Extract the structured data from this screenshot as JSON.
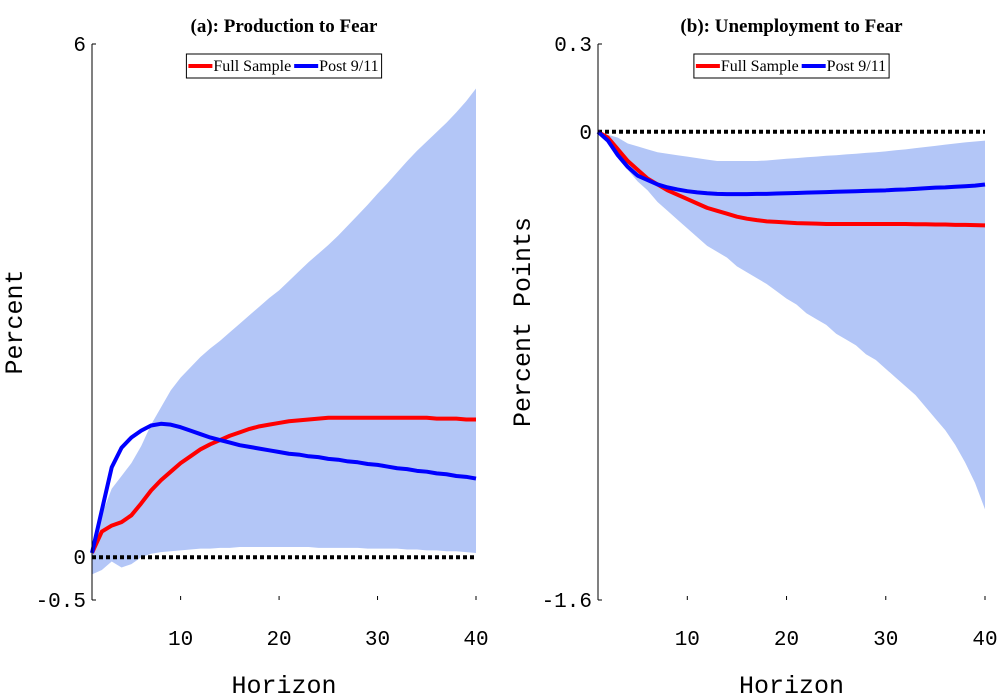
{
  "chart_data": [
    {
      "type": "line",
      "title": "(a): Production to Fear",
      "xlabel": "Horizon",
      "ylabel": "Percent",
      "x": [
        1,
        2,
        3,
        4,
        5,
        6,
        7,
        8,
        9,
        10,
        11,
        12,
        13,
        14,
        15,
        16,
        17,
        18,
        19,
        20,
        21,
        22,
        23,
        24,
        25,
        26,
        27,
        28,
        29,
        30,
        31,
        32,
        33,
        34,
        35,
        36,
        37,
        38,
        39,
        40
      ],
      "xlim": [
        1,
        40
      ],
      "xticks": [
        10,
        20,
        30,
        40
      ],
      "ylim": [
        -0.5,
        6
      ],
      "yticks": [
        -0.5,
        0,
        6
      ],
      "legend": "upper center",
      "zero_line": true,
      "band": {
        "color": "#b3c6f7",
        "upper": [
          0.1,
          0.5,
          0.8,
          0.95,
          1.1,
          1.3,
          1.55,
          1.75,
          1.95,
          2.1,
          2.22,
          2.34,
          2.44,
          2.53,
          2.63,
          2.73,
          2.83,
          2.93,
          3.03,
          3.12,
          3.23,
          3.34,
          3.45,
          3.55,
          3.65,
          3.76,
          3.88,
          4.0,
          4.12,
          4.25,
          4.37,
          4.5,
          4.63,
          4.75,
          4.86,
          4.97,
          5.08,
          5.2,
          5.33,
          5.48
        ],
        "lower": [
          -0.2,
          -0.15,
          -0.05,
          -0.12,
          -0.08,
          0.0,
          0.04,
          0.06,
          0.07,
          0.08,
          0.09,
          0.1,
          0.1,
          0.11,
          0.11,
          0.12,
          0.12,
          0.12,
          0.12,
          0.12,
          0.12,
          0.12,
          0.12,
          0.11,
          0.11,
          0.11,
          0.11,
          0.11,
          0.1,
          0.1,
          0.1,
          0.1,
          0.09,
          0.09,
          0.08,
          0.08,
          0.07,
          0.07,
          0.06,
          0.05
        ]
      },
      "series": [
        {
          "name": "Full Sample",
          "color": "#ff0000",
          "values": [
            0.05,
            0.3,
            0.37,
            0.41,
            0.49,
            0.63,
            0.78,
            0.9,
            1.0,
            1.1,
            1.18,
            1.26,
            1.32,
            1.37,
            1.42,
            1.46,
            1.5,
            1.53,
            1.55,
            1.57,
            1.59,
            1.6,
            1.61,
            1.62,
            1.63,
            1.63,
            1.63,
            1.63,
            1.63,
            1.63,
            1.63,
            1.63,
            1.63,
            1.63,
            1.63,
            1.62,
            1.62,
            1.62,
            1.61,
            1.61
          ]
        },
        {
          "name": "Post 9/11",
          "color": "#0000ff",
          "values": [
            0.05,
            0.55,
            1.05,
            1.28,
            1.4,
            1.48,
            1.54,
            1.56,
            1.55,
            1.52,
            1.48,
            1.44,
            1.4,
            1.37,
            1.34,
            1.31,
            1.29,
            1.27,
            1.25,
            1.23,
            1.21,
            1.2,
            1.18,
            1.17,
            1.15,
            1.14,
            1.12,
            1.11,
            1.09,
            1.08,
            1.06,
            1.04,
            1.03,
            1.01,
            1.0,
            0.98,
            0.97,
            0.95,
            0.94,
            0.92
          ]
        }
      ]
    },
    {
      "type": "line",
      "title": "(b): Unemployment to Fear",
      "xlabel": "Horizon",
      "ylabel": "Percent Points",
      "x": [
        1,
        2,
        3,
        4,
        5,
        6,
        7,
        8,
        9,
        10,
        11,
        12,
        13,
        14,
        15,
        16,
        17,
        18,
        19,
        20,
        21,
        22,
        23,
        24,
        25,
        26,
        27,
        28,
        29,
        30,
        31,
        32,
        33,
        34,
        35,
        36,
        37,
        38,
        39,
        40
      ],
      "xlim": [
        1,
        40
      ],
      "xticks": [
        10,
        20,
        30,
        40
      ],
      "ylim": [
        -1.6,
        0.3
      ],
      "yticks": [
        -1.6,
        0,
        0.3
      ],
      "legend": "upper center",
      "zero_line": true,
      "band": {
        "color": "#b3c6f7",
        "upper": [
          0,
          -0.01,
          -0.02,
          -0.04,
          -0.05,
          -0.06,
          -0.07,
          -0.075,
          -0.08,
          -0.085,
          -0.09,
          -0.095,
          -0.1,
          -0.1,
          -0.1,
          -0.1,
          -0.1,
          -0.098,
          -0.095,
          -0.092,
          -0.09,
          -0.087,
          -0.085,
          -0.082,
          -0.08,
          -0.077,
          -0.075,
          -0.072,
          -0.07,
          -0.067,
          -0.063,
          -0.06,
          -0.056,
          -0.052,
          -0.048,
          -0.044,
          -0.04,
          -0.036,
          -0.033,
          -0.03
        ],
        "lower": [
          0,
          -0.03,
          -0.09,
          -0.13,
          -0.17,
          -0.2,
          -0.24,
          -0.27,
          -0.3,
          -0.33,
          -0.36,
          -0.39,
          -0.41,
          -0.43,
          -0.46,
          -0.48,
          -0.5,
          -0.52,
          -0.545,
          -0.57,
          -0.59,
          -0.62,
          -0.64,
          -0.66,
          -0.69,
          -0.71,
          -0.73,
          -0.76,
          -0.78,
          -0.81,
          -0.84,
          -0.87,
          -0.9,
          -0.94,
          -0.98,
          -1.02,
          -1.07,
          -1.13,
          -1.2,
          -1.29
        ]
      },
      "series": [
        {
          "name": "Full Sample",
          "color": "#ff0000",
          "values": [
            0,
            -0.02,
            -0.06,
            -0.1,
            -0.13,
            -0.16,
            -0.18,
            -0.2,
            -0.215,
            -0.23,
            -0.245,
            -0.26,
            -0.27,
            -0.28,
            -0.29,
            -0.297,
            -0.302,
            -0.306,
            -0.308,
            -0.31,
            -0.312,
            -0.313,
            -0.314,
            -0.315,
            -0.315,
            -0.315,
            -0.315,
            -0.315,
            -0.315,
            -0.315,
            -0.315,
            -0.315,
            -0.316,
            -0.316,
            -0.317,
            -0.317,
            -0.318,
            -0.318,
            -0.319,
            -0.32
          ]
        },
        {
          "name": "Post 9/11",
          "color": "#0000ff",
          "values": [
            0,
            -0.03,
            -0.08,
            -0.12,
            -0.15,
            -0.165,
            -0.18,
            -0.19,
            -0.197,
            -0.203,
            -0.207,
            -0.21,
            -0.212,
            -0.213,
            -0.213,
            -0.213,
            -0.212,
            -0.212,
            -0.211,
            -0.21,
            -0.209,
            -0.208,
            -0.207,
            -0.206,
            -0.205,
            -0.204,
            -0.203,
            -0.202,
            -0.201,
            -0.2,
            -0.198,
            -0.197,
            -0.195,
            -0.193,
            -0.191,
            -0.19,
            -0.188,
            -0.186,
            -0.184,
            -0.18
          ]
        }
      ]
    }
  ]
}
